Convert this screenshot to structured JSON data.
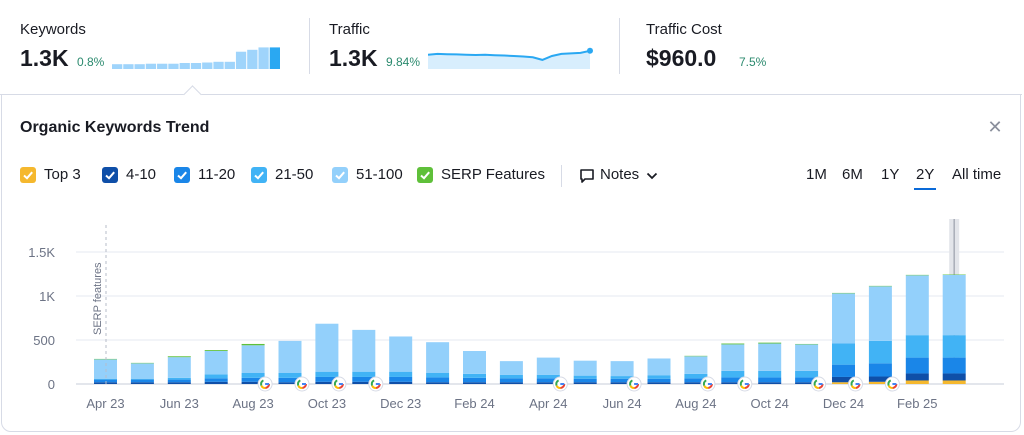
{
  "kpis": [
    {
      "label": "Keywords",
      "value": "1.3K",
      "delta": "0.8%",
      "spark_type": "bars",
      "spark_values": [
        0.2,
        0.2,
        0.2,
        0.22,
        0.22,
        0.22,
        0.25,
        0.25,
        0.27,
        0.3,
        0.3,
        0.72,
        0.8,
        0.9,
        0.9
      ]
    },
    {
      "label": "Traffic",
      "value": "1.3K",
      "delta": "9.84%",
      "spark_type": "line",
      "spark_values": [
        0.55,
        0.58,
        0.57,
        0.56,
        0.55,
        0.54,
        0.55,
        0.53,
        0.52,
        0.5,
        0.48,
        0.45,
        0.35,
        0.5,
        0.58,
        0.6,
        0.62,
        0.7
      ]
    },
    {
      "label": "Traffic Cost",
      "value": "$960.0",
      "delta": "7.5%"
    }
  ],
  "panel": {
    "title": "Organic Keywords Trend",
    "close_icon": "close-icon"
  },
  "legend": [
    {
      "label": "Top 3",
      "color": "#f5b82e"
    },
    {
      "label": "4-10",
      "color": "#0f4fa8"
    },
    {
      "label": "11-20",
      "color": "#1a86e8"
    },
    {
      "label": "21-50",
      "color": "#41b3f5"
    },
    {
      "label": "51-100",
      "color": "#93d0fb"
    },
    {
      "label": "SERP Features",
      "color": "#5fc03a"
    }
  ],
  "notes": {
    "label": "Notes",
    "icon": "comment-icon",
    "chevron": "chevron-down-icon"
  },
  "ranges": [
    {
      "label": "1M",
      "active": false
    },
    {
      "label": "6M",
      "active": false
    },
    {
      "label": "1Y",
      "active": false
    },
    {
      "label": "2Y",
      "active": true
    },
    {
      "label": "All time",
      "active": false
    }
  ],
  "chart_data": {
    "type": "bar",
    "stacked": true,
    "categories": [
      "Apr 23",
      "May 23",
      "Jun 23",
      "Jul 23",
      "Aug 23",
      "Sep 23",
      "Oct 23",
      "Nov 23",
      "Dec 23",
      "Jan 24",
      "Feb 24",
      "Mar 24",
      "Apr 24",
      "May 24",
      "Jun 24",
      "Jul 24",
      "Aug 24",
      "Sep 24",
      "Oct 24",
      "Nov 24",
      "Dec 24",
      "Jan 25",
      "Feb 25",
      "Mar 25"
    ],
    "x_tick_labels": [
      "Apr 23",
      "Jun 23",
      "Aug 23",
      "Oct 23",
      "Dec 23",
      "Feb 24",
      "Apr 24",
      "Jun 24",
      "Aug 24",
      "Oct 24",
      "Dec 24",
      "Feb 25"
    ],
    "y_ticks": [
      "0",
      "500",
      "1K",
      "1.5K"
    ],
    "ylim": [
      0,
      1650
    ],
    "series": [
      {
        "name": "Top 3",
        "values": [
          0,
          0,
          0,
          0,
          0,
          0,
          0,
          0,
          0,
          0,
          0,
          0,
          0,
          0,
          0,
          0,
          0,
          0,
          0,
          0,
          20,
          25,
          40,
          40
        ]
      },
      {
        "name": "4-10",
        "values": [
          20,
          20,
          20,
          25,
          25,
          20,
          25,
          25,
          25,
          20,
          20,
          20,
          20,
          20,
          20,
          20,
          20,
          20,
          20,
          20,
          60,
          60,
          80,
          80
        ]
      },
      {
        "name": "11-20",
        "values": [
          30,
          30,
          30,
          40,
          45,
          50,
          55,
          55,
          55,
          55,
          50,
          45,
          45,
          40,
          40,
          40,
          45,
          55,
          55,
          55,
          140,
          150,
          180,
          180
        ]
      },
      {
        "name": "21-50",
        "values": [
          10,
          10,
          20,
          45,
          55,
          55,
          60,
          60,
          60,
          50,
          45,
          40,
          40,
          35,
          30,
          40,
          50,
          75,
          75,
          75,
          240,
          255,
          255,
          255
        ]
      },
      {
        "name": "51-100",
        "values": [
          220,
          175,
          235,
          265,
          315,
          365,
          545,
          475,
          400,
          350,
          260,
          155,
          195,
          170,
          170,
          190,
          200,
          300,
          310,
          300,
          570,
          620,
          680,
          685
        ]
      },
      {
        "name": "SERP Features",
        "values": [
          5,
          5,
          10,
          10,
          15,
          0,
          0,
          0,
          0,
          0,
          0,
          0,
          0,
          0,
          0,
          0,
          5,
          10,
          10,
          5,
          5,
          5,
          5,
          5
        ]
      }
    ],
    "google_update_markers": [
      "Aug 23",
      "Sep 23",
      "Oct 23",
      "Nov 23",
      "Apr 24",
      "Jun 24",
      "Aug 24",
      "Sep 24",
      "Nov 24",
      "Dec 24",
      "Jan 25"
    ],
    "annotation": "SERP features",
    "annotation_at": "Apr 23",
    "highlight_category": "Mar 25"
  }
}
